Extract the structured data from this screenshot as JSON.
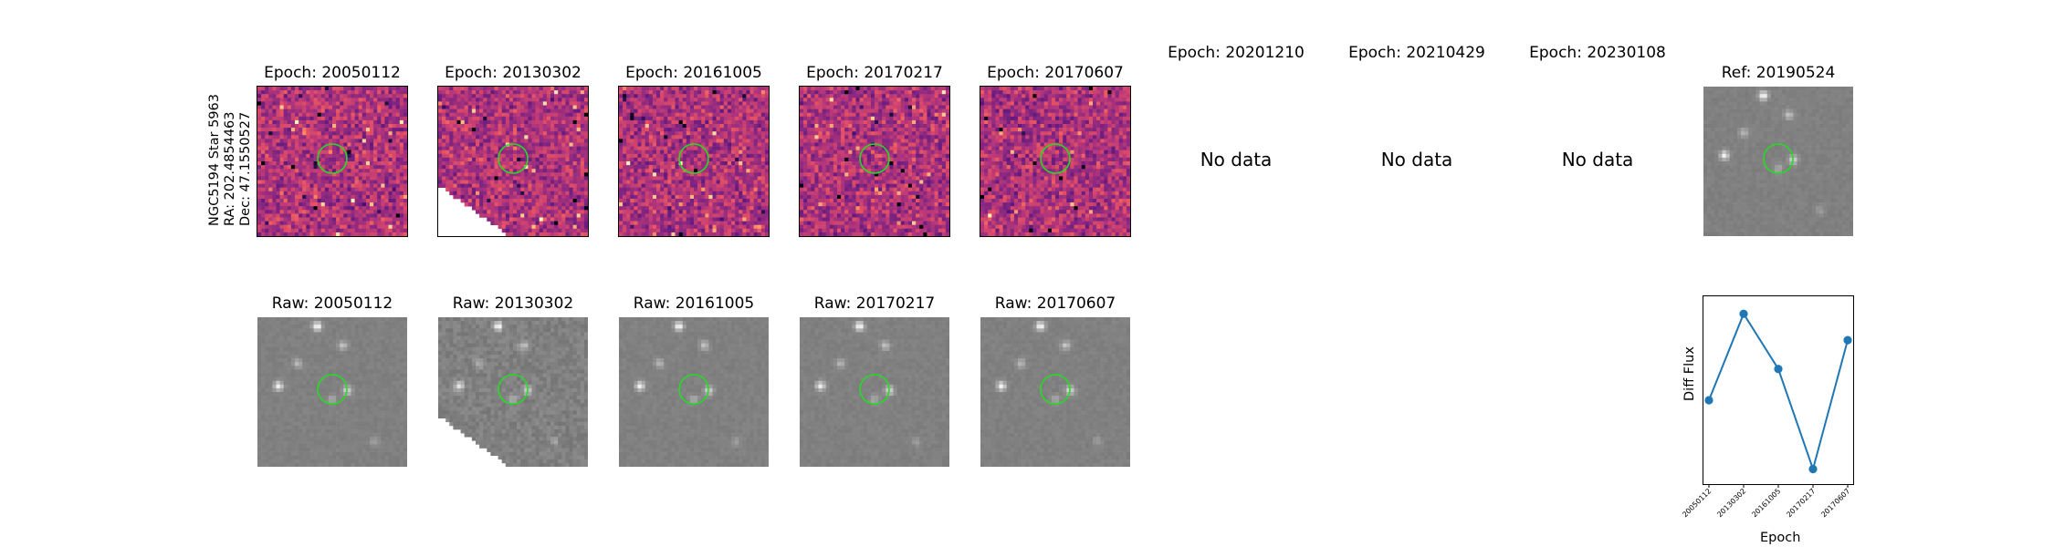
{
  "row_label": {
    "line1": "NGC5194 Star 5963",
    "line2": "RA: 202.4854463",
    "line3": "Dec: 47.1550527"
  },
  "diff_panels": [
    {
      "title": "Epoch: 20050112",
      "has_data": true,
      "mask": "none"
    },
    {
      "title": "Epoch: 20130302",
      "has_data": true,
      "mask": "lower-left-wedge"
    },
    {
      "title": "Epoch: 20161005",
      "has_data": true,
      "mask": "none"
    },
    {
      "title": "Epoch: 20170217",
      "has_data": true,
      "mask": "none"
    },
    {
      "title": "Epoch: 20170607",
      "has_data": true,
      "mask": "none"
    },
    {
      "title": "Epoch: 20201210",
      "has_data": false,
      "text": "No data"
    },
    {
      "title": "Epoch: 20210429",
      "has_data": false,
      "text": "No data"
    },
    {
      "title": "Epoch: 20230108",
      "has_data": false,
      "text": "No data"
    }
  ],
  "ref_panel": {
    "title": "Ref: 20190524"
  },
  "raw_panels": [
    {
      "title": "Raw: 20050112",
      "mask": "none"
    },
    {
      "title": "Raw: 20130302",
      "mask": "lower-left-wedge"
    },
    {
      "title": "Raw: 20161005",
      "mask": "none"
    },
    {
      "title": "Raw: 20170217",
      "mask": "none"
    },
    {
      "title": "Raw: 20170607",
      "mask": "none"
    }
  ],
  "colors": {
    "marker_circle": "#22dd22",
    "series_line": "#1f77b4",
    "diff_colormap": "magma",
    "raw_colormap": "gray"
  },
  "chart_data": {
    "type": "line",
    "xlabel": "Epoch",
    "ylabel": "Diff Flux",
    "categories": [
      "20050112",
      "20130302",
      "20161005",
      "20170217",
      "20170607"
    ],
    "series": [
      {
        "values": [
          0.27,
          0.96,
          0.52,
          -0.28,
          0.75
        ]
      }
    ],
    "ylim": [
      -0.4,
      1.1
    ],
    "y_ticks_shown": false,
    "grid": false,
    "legend": "none"
  }
}
